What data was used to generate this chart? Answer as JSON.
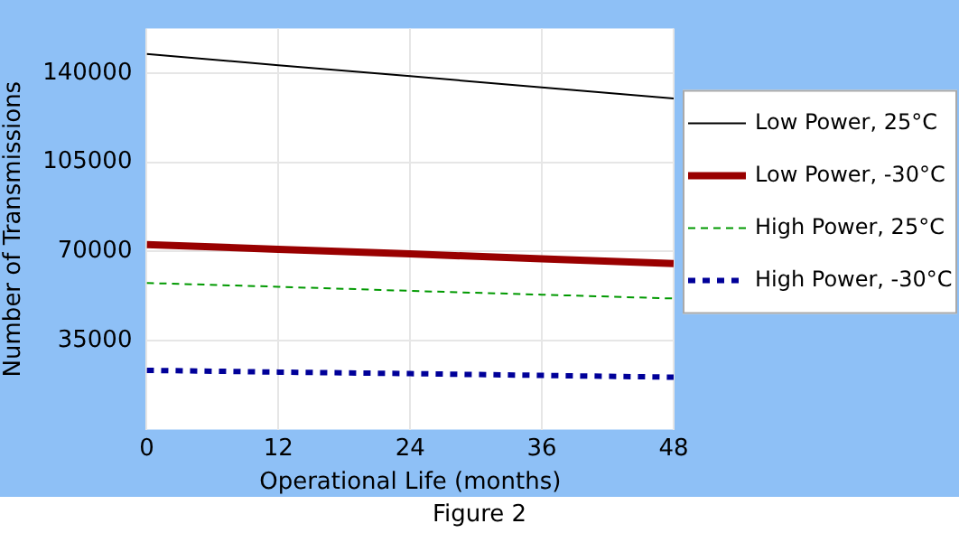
{
  "chart_data": {
    "type": "line",
    "xlabel": "Operational Life (months)",
    "ylabel": "Number of Transmissions",
    "annotations": [
      "Figure 2"
    ],
    "x": [
      0,
      12,
      24,
      36,
      48
    ],
    "series": [
      {
        "name": "Low Power, 25°C",
        "color": "#000000",
        "line_style": "solid",
        "values": [
          147500,
          143100,
          138800,
          134400,
          130000
        ]
      },
      {
        "name": "Low Power, -30°C",
        "color": "#990000",
        "line_style": "solid",
        "values": [
          72700,
          70800,
          69000,
          67100,
          65200
        ]
      },
      {
        "name": "High Power, 25°C",
        "color": "#009900",
        "line_style": "dashed",
        "values": [
          57600,
          56100,
          54500,
          53000,
          51500
        ]
      },
      {
        "name": "High Power, -30°C",
        "color": "#000099",
        "line_style": "dotted",
        "values": [
          23300,
          22600,
          22000,
          21300,
          20600
        ]
      }
    ],
    "xlim": [
      0,
      48
    ],
    "xticks": [
      0,
      12,
      24,
      36,
      48
    ],
    "ylim": [
      0,
      157500
    ],
    "yticks": [
      35000,
      70000,
      105000,
      140000
    ],
    "grid": true,
    "legend": "right",
    "marker": "none"
  }
}
